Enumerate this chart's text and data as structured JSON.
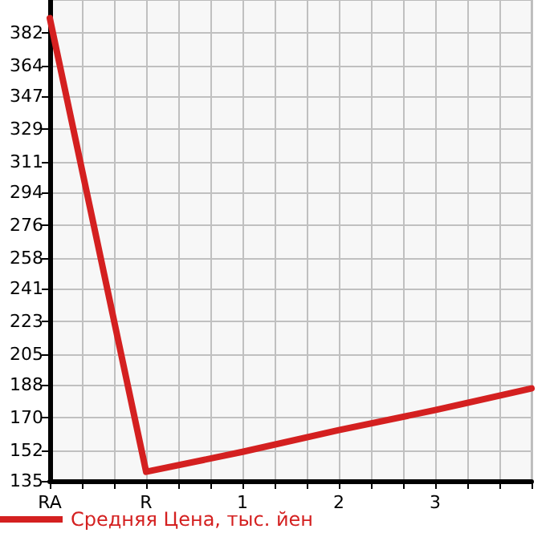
{
  "chart_data": {
    "type": "line",
    "categories": [
      "RA",
      "R",
      "1",
      "2",
      "3",
      null
    ],
    "series": [
      {
        "name": "Средняя Цена, тыс. йен",
        "color": "#d42020",
        "values": [
          390,
          140,
          151,
          163,
          174,
          186
        ]
      }
    ],
    "ylim": [
      135,
      400
    ],
    "yticks": [
      135,
      152,
      170,
      188,
      205,
      223,
      241,
      258,
      276,
      294,
      311,
      329,
      347,
      364,
      382
    ],
    "grid": true,
    "legend": "bottom left",
    "marker": "none",
    "line_style": "solid"
  }
}
